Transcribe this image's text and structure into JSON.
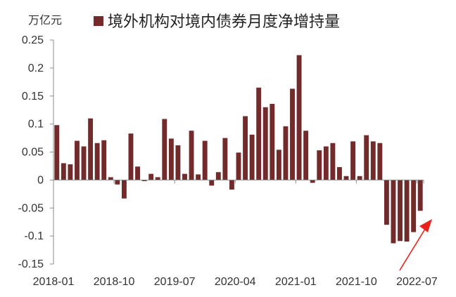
{
  "chart_data": {
    "type": "bar",
    "title": "",
    "unit_label": "万亿元",
    "xlabel": "",
    "ylabel": "",
    "ylim": [
      -0.15,
      0.25
    ],
    "y_ticks": [
      0.25,
      0.2,
      0.15,
      0.1,
      0.05,
      0,
      -0.05,
      -0.1,
      -0.15
    ],
    "y_tick_labels": [
      "0.25",
      "0.2",
      "0.15",
      "0.1",
      "0.05",
      "0",
      "-0.05",
      "-0.1",
      "-0.15"
    ],
    "x_tick_labels": [
      "2018-01",
      "2018-10",
      "2019-07",
      "2020-04",
      "2021-01",
      "2021-10",
      "2022-07"
    ],
    "x_tick_indices": [
      0,
      9,
      18,
      27,
      36,
      45,
      54
    ],
    "grid": false,
    "legend_position": "top",
    "series": [
      {
        "name": "境外机构对境内债券月度净增持量",
        "color": "#722a2a",
        "values": [
          0.098,
          0.03,
          0.028,
          0.07,
          0.06,
          0.11,
          0.066,
          0.071,
          0.005,
          -0.008,
          -0.033,
          0.083,
          0.024,
          -0.002,
          0.011,
          0.005,
          0.109,
          0.074,
          0.062,
          0.011,
          0.088,
          0.01,
          0.07,
          -0.01,
          0.014,
          0.075,
          -0.017,
          0.049,
          0.114,
          0.081,
          0.165,
          0.13,
          0.136,
          0.054,
          0.096,
          0.163,
          0.223,
          0.088,
          -0.005,
          0.053,
          0.06,
          0.066,
          0.023,
          0.007,
          0.069,
          0.007,
          0.08,
          0.069,
          0.066,
          -0.08,
          -0.113,
          -0.109,
          -0.11,
          -0.093,
          -0.055
        ]
      }
    ]
  }
}
